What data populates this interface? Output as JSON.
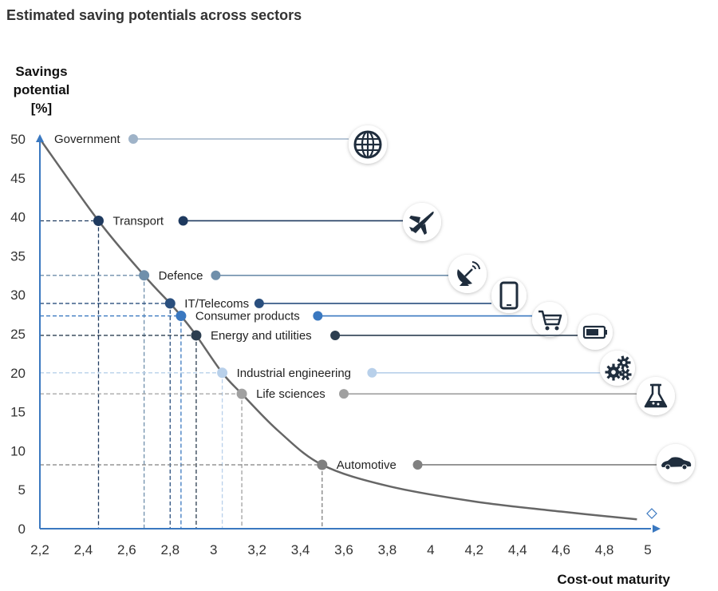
{
  "chart_data": {
    "type": "line",
    "title": "Estimated saving potentials across sectors",
    "ylabel": "Savings\npotential\n[%]",
    "xlabel": "Cost-out maturity",
    "xlim": [
      2.2,
      5.0
    ],
    "ylim": [
      0,
      50
    ],
    "x_ticks": [
      "2,2",
      "2,4",
      "2,6",
      "2,8",
      "3",
      "3,2",
      "3,4",
      "3,6",
      "3,8",
      "4",
      "4,2",
      "4,4",
      "4,6",
      "4,8",
      "5"
    ],
    "x_tick_values": [
      2.2,
      2.4,
      2.6,
      2.8,
      3.0,
      3.2,
      3.4,
      3.6,
      3.8,
      4.0,
      4.2,
      4.4,
      4.6,
      4.8,
      5.0
    ],
    "y_ticks": [
      0,
      5,
      10,
      15,
      20,
      25,
      30,
      35,
      40,
      45,
      50
    ],
    "curve": [
      {
        "x": 2.2,
        "y": 50
      },
      {
        "x": 2.47,
        "y": 39.5
      },
      {
        "x": 2.68,
        "y": 32.5
      },
      {
        "x": 2.8,
        "y": 28.9
      },
      {
        "x": 2.85,
        "y": 27.3
      },
      {
        "x": 2.92,
        "y": 24.8
      },
      {
        "x": 3.04,
        "y": 20.0
      },
      {
        "x": 3.13,
        "y": 17.3
      },
      {
        "x": 3.3,
        "y": 12.5
      },
      {
        "x": 3.5,
        "y": 8.2
      },
      {
        "x": 3.8,
        "y": 5.5
      },
      {
        "x": 4.2,
        "y": 3.5
      },
      {
        "x": 4.6,
        "y": 2.2
      },
      {
        "x": 4.95,
        "y": 1.2
      }
    ],
    "sectors": [
      {
        "name": "Government",
        "x": 2.2,
        "y": 50,
        "label_x": 2.63,
        "color": "#9fb3c8",
        "icon": "globe-icon"
      },
      {
        "name": "Transport",
        "x": 2.47,
        "y": 39.5,
        "label_x": 2.86,
        "color": "#1f3a5f",
        "icon": "airplane-icon"
      },
      {
        "name": "Defence",
        "x": 2.68,
        "y": 32.5,
        "label_x": 3.01,
        "color": "#6f8fab",
        "icon": "satellite-dish-icon"
      },
      {
        "name": "IT/Telecoms",
        "x": 2.8,
        "y": 28.9,
        "label_x": 3.21,
        "color": "#2a4f7e",
        "icon": "tablet-icon"
      },
      {
        "name": "Consumer products",
        "x": 2.85,
        "y": 27.3,
        "label_x": 3.48,
        "color": "#3a78c0",
        "icon": "shopping-cart-icon"
      },
      {
        "name": "Energy and utilities",
        "x": 2.92,
        "y": 24.8,
        "label_x": 3.56,
        "color": "#2c3e50",
        "icon": "battery-icon"
      },
      {
        "name": "Industrial engineering",
        "x": 3.04,
        "y": 20.0,
        "label_x": 3.73,
        "color": "#b8d0ea",
        "icon": "gears-icon"
      },
      {
        "name": "Life sciences",
        "x": 3.13,
        "y": 17.3,
        "label_x": 3.6,
        "color": "#a0a0a0",
        "icon": "flask-icon"
      },
      {
        "name": "Automotive",
        "x": 3.5,
        "y": 8.2,
        "label_x": 3.94,
        "color": "#808080",
        "icon": "car-icon"
      }
    ],
    "grid": false,
    "legend": "none"
  }
}
